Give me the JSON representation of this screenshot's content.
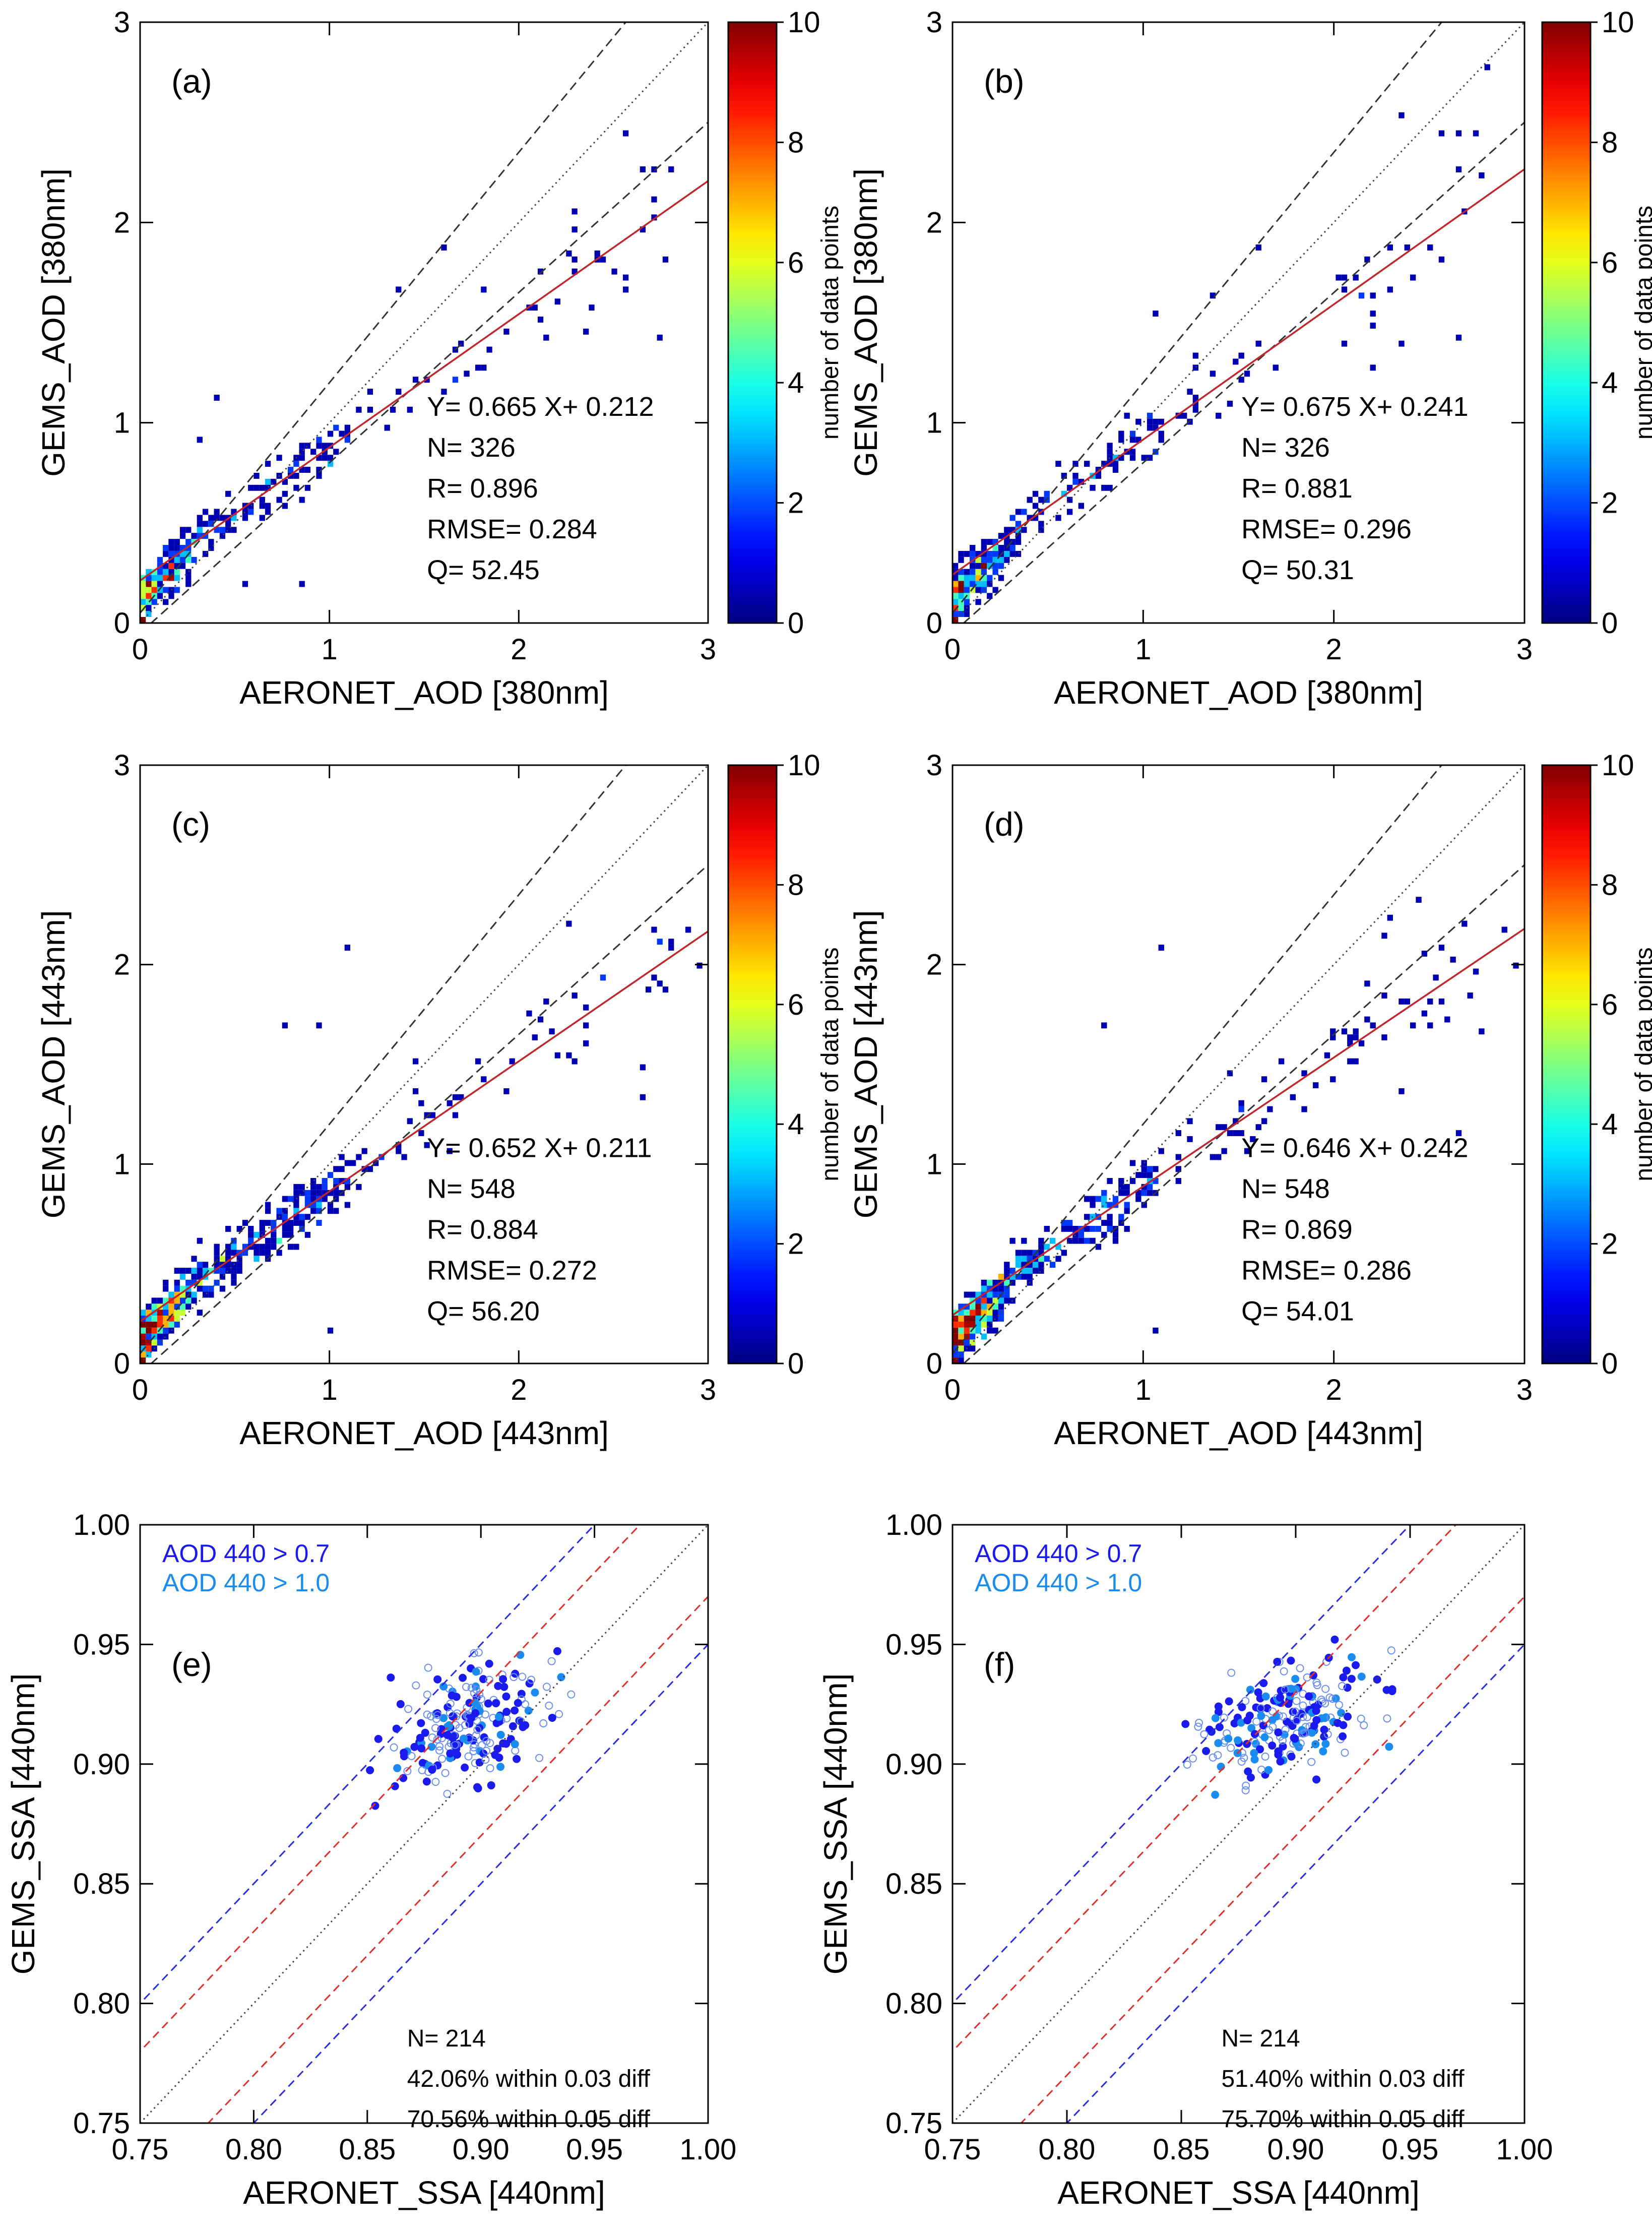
{
  "colorbar": {
    "label": "number of data points",
    "ticks": [
      "0",
      "2",
      "4",
      "6",
      "8",
      "10"
    ],
    "min": 0,
    "max": 10
  },
  "chart_data": [
    {
      "id": "a",
      "type": "scatter",
      "panel_label": "(a)",
      "xlabel": "AERONET_AOD [380nm]",
      "ylabel": "GEMS_AOD [380nm]",
      "xlim": [
        0,
        3
      ],
      "ylim": [
        0,
        3
      ],
      "xticks": [
        "0",
        "1",
        "2",
        "3"
      ],
      "yticks": [
        "0",
        "1",
        "2",
        "3"
      ],
      "fit": {
        "slope": 0.665,
        "intercept": 0.212
      },
      "stats": [
        "Y=   0.665 X+   0.212",
        "N=   326",
        "R=   0.896",
        "RMSE= 0.284",
        "Q=   52.45"
      ],
      "highlight_points": [
        [
          2.55,
          2.45
        ],
        [
          2.8,
          2.27
        ],
        [
          2.72,
          2.25
        ],
        [
          2.65,
          2.25
        ],
        [
          2.3,
          2.05
        ],
        [
          2.3,
          1.95
        ],
        [
          2.28,
          1.82
        ],
        [
          2.2,
          1.6
        ],
        [
          2.35,
          1.45
        ],
        [
          2.75,
          1.42
        ],
        [
          1.8,
          1.65
        ],
        [
          1.6,
          1.88
        ],
        [
          1.35,
          1.65
        ],
        [
          1.2,
          1.05
        ],
        [
          1.45,
          1.2
        ],
        [
          0.3,
          0.9
        ],
        [
          0.4,
          1.12
        ],
        [
          0.85,
          0.2
        ],
        [
          0.55,
          0.2
        ],
        [
          0.05,
          0.05
        ]
      ]
    },
    {
      "id": "b",
      "type": "scatter",
      "panel_label": "(b)",
      "xlabel": "AERONET_AOD [380nm]",
      "ylabel": "GEMS_AOD [380nm]",
      "xlim": [
        0,
        3
      ],
      "ylim": [
        0,
        3
      ],
      "xticks": [
        "0",
        "1",
        "2",
        "3"
      ],
      "yticks": [
        "0",
        "1",
        "2",
        "3"
      ],
      "fit": {
        "slope": 0.675,
        "intercept": 0.241
      },
      "stats": [
        "Y=   0.675 X+   0.241",
        "N=   326",
        "R=   0.881",
        "RMSE= 0.296",
        "Q=   50.31"
      ],
      "highlight_points": [
        [
          2.8,
          2.77
        ],
        [
          2.35,
          2.52
        ],
        [
          2.65,
          2.45
        ],
        [
          2.55,
          2.45
        ],
        [
          2.75,
          2.45
        ],
        [
          2.65,
          2.25
        ],
        [
          2.3,
          1.65
        ],
        [
          2.55,
          1.8
        ],
        [
          2.2,
          1.55
        ],
        [
          1.6,
          1.88
        ],
        [
          1.05,
          1.55
        ],
        [
          1.35,
          1.62
        ],
        [
          2.65,
          1.42
        ],
        [
          2.35,
          1.4
        ],
        [
          2.2,
          1.28
        ],
        [
          0.35,
          0.55
        ],
        [
          0.05,
          0.05
        ]
      ]
    },
    {
      "id": "c",
      "type": "scatter",
      "panel_label": "(c)",
      "xlabel": "AERONET_AOD [443nm]",
      "ylabel": "GEMS_AOD [443nm]",
      "xlim": [
        0,
        3
      ],
      "ylim": [
        0,
        3
      ],
      "xticks": [
        "0",
        "1",
        "2",
        "3"
      ],
      "yticks": [
        "0",
        "1",
        "2",
        "3"
      ],
      "fit": {
        "slope": 0.652,
        "intercept": 0.211
      },
      "stats": [
        "Y=   0.652 X+   0.211",
        "N=   548",
        "R=   0.884",
        "RMSE= 0.272",
        "Q=   56.20"
      ],
      "highlight_points": [
        [
          2.95,
          2.0
        ],
        [
          2.9,
          2.18
        ],
        [
          2.8,
          2.12
        ],
        [
          2.45,
          1.92
        ],
        [
          2.25,
          2.2
        ],
        [
          2.3,
          1.85
        ],
        [
          2.05,
          1.75
        ],
        [
          1.1,
          2.08
        ],
        [
          1.45,
          1.5
        ],
        [
          1.95,
          1.5
        ],
        [
          2.3,
          1.5
        ],
        [
          2.65,
          1.48
        ],
        [
          2.65,
          1.32
        ],
        [
          1.55,
          1.25
        ],
        [
          0.75,
          1.68
        ],
        [
          0.95,
          1.68
        ],
        [
          0.3,
          0.6
        ],
        [
          1.0,
          0.15
        ],
        [
          0.05,
          0.05
        ]
      ]
    },
    {
      "id": "d",
      "type": "scatter",
      "panel_label": "(d)",
      "xlabel": "AERONET_AOD [443nm]",
      "ylabel": "GEMS_AOD [443nm]",
      "xlim": [
        0,
        3
      ],
      "ylim": [
        0,
        3
      ],
      "xticks": [
        "0",
        "1",
        "2",
        "3"
      ],
      "yticks": [
        "0",
        "1",
        "2",
        "3"
      ],
      "fit": {
        "slope": 0.646,
        "intercept": 0.242
      },
      "stats": [
        "Y=   0.646 X+   0.242",
        "N=   548",
        "R=   0.869",
        "RMSE= 0.286",
        "Q=   54.01"
      ],
      "highlight_points": [
        [
          2.95,
          2.0
        ],
        [
          2.9,
          2.18
        ],
        [
          2.55,
          2.08
        ],
        [
          2.25,
          2.15
        ],
        [
          2.3,
          2.22
        ],
        [
          2.45,
          2.33
        ],
        [
          2.25,
          1.85
        ],
        [
          1.1,
          2.08
        ],
        [
          1.45,
          1.45
        ],
        [
          1.95,
          1.55
        ],
        [
          2.1,
          1.52
        ],
        [
          2.35,
          1.35
        ],
        [
          2.65,
          1.15
        ],
        [
          0.78,
          1.68
        ],
        [
          1.25,
          1.22
        ],
        [
          0.3,
          0.6
        ],
        [
          1.05,
          0.15
        ],
        [
          0.05,
          0.05
        ]
      ]
    },
    {
      "id": "e",
      "type": "scatter",
      "panel_label": "(e)",
      "xlabel": "AERONET_SSA [440nm]",
      "ylabel": "GEMS_SSA [440nm]",
      "xlim": [
        0.75,
        1.0
      ],
      "ylim": [
        0.75,
        1.0
      ],
      "xticks": [
        "0.75",
        "0.80",
        "0.85",
        "0.90",
        "0.95",
        "1.00"
      ],
      "yticks": [
        "0.75",
        "0.80",
        "0.85",
        "0.90",
        "0.95",
        "1.00"
      ],
      "legend": [
        {
          "label": "AOD 440 > 0.7",
          "color": "#1a1aee"
        },
        {
          "label": "AOD 440 > 1.0",
          "color": "#1a8cf0"
        }
      ],
      "stats": [
        "N=   214",
        "42.06% within 0.03 diff",
        "70.56% within 0.05 diff"
      ]
    },
    {
      "id": "f",
      "type": "scatter",
      "panel_label": "(f)",
      "xlabel": "AERONET_SSA [440nm]",
      "ylabel": "GEMS_SSA [440nm]",
      "xlim": [
        0.75,
        1.0
      ],
      "ylim": [
        0.75,
        1.0
      ],
      "xticks": [
        "0.75",
        "0.80",
        "0.85",
        "0.90",
        "0.95",
        "1.00"
      ],
      "yticks": [
        "0.75",
        "0.80",
        "0.85",
        "0.90",
        "0.95",
        "1.00"
      ],
      "legend": [
        {
          "label": "AOD 440 > 0.7",
          "color": "#1a1aee"
        },
        {
          "label": "AOD 440 > 1.0",
          "color": "#1a8cf0"
        }
      ],
      "stats": [
        "N=   214",
        "51.40% within 0.03 diff",
        "75.70% within 0.05 diff"
      ]
    }
  ]
}
